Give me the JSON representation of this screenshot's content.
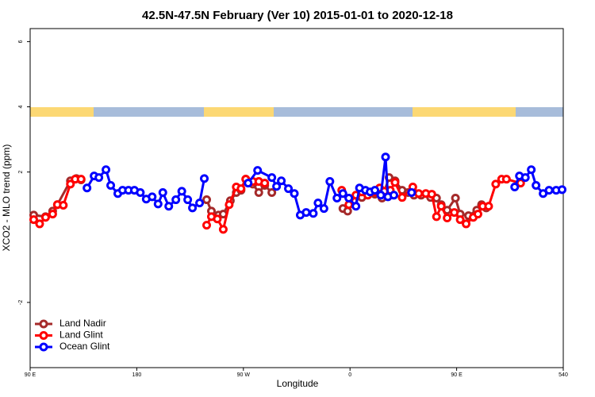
{
  "chart_data": {
    "type": "line",
    "title": "42.5N-47.5N February (Ver 10)   2015-01-01 to 2020-12-18",
    "x_label": "Longitude",
    "y_label": "XCO2 - MLO trend (ppm)",
    "xlim": [
      90,
      540
    ],
    "xticks": [
      {
        "value": 90,
        "label": "90 E"
      },
      180,
      {
        "value": 270,
        "label": "90 W"
      },
      {
        "value": 360,
        "label": "0"
      },
      {
        "value": 450,
        "label": "90 E"
      },
      540
    ],
    "ylim": [
      -4,
      6.4
    ],
    "yticks": [
      -2,
      2,
      4,
      6
    ],
    "legend": "bottom-left",
    "series": [
      {
        "name": "Land Nadir",
        "color": "#a52a2a",
        "x": [
          93,
          103,
          109,
          113,
          124,
          129,
          133,
          null,
          239,
          243,
          249,
          253,
          259,
          264,
          268,
          272,
          278,
          283,
          288,
          294,
          null,
          354,
          358,
          363,
          370,
          375,
          381,
          387,
          393,
          398,
          404,
          409,
          414,
          420,
          428,
          433,
          437,
          442,
          449,
          453,
          460,
          467,
          471,
          475
        ],
        "values": [
          0.68,
          0.63,
          0.8,
          1.0,
          1.73,
          1.8,
          1.76,
          null,
          1.15,
          0.8,
          0.68,
          0.71,
          1.12,
          1.37,
          1.44,
          1.78,
          1.63,
          1.37,
          1.59,
          1.37,
          null,
          0.88,
          0.8,
          1.12,
          1.22,
          1.32,
          1.32,
          1.2,
          1.83,
          1.73,
          1.44,
          1.37,
          1.29,
          1.29,
          1.22,
          1.2,
          1.0,
          0.83,
          1.2,
          0.71,
          0.66,
          0.83,
          1.0,
          0.9
        ]
      },
      {
        "name": "Land Glint",
        "color": "#ff0000",
        "x": [
          93,
          98,
          103,
          109,
          113,
          118,
          124,
          128,
          133,
          null,
          239,
          243,
          248,
          253,
          258,
          264,
          268,
          272,
          278,
          283,
          288,
          null,
          353,
          359,
          365,
          370,
          375,
          381,
          385,
          389,
          394,
          398,
          404,
          413,
          418,
          424,
          429,
          433,
          437,
          442,
          448,
          453,
          458,
          464,
          468,
          472,
          477,
          483,
          488,
          492,
          504
        ],
        "values": [
          0.54,
          0.41,
          0.61,
          0.71,
          1.0,
          0.98,
          1.63,
          1.78,
          1.78,
          null,
          0.37,
          0.63,
          0.56,
          0.24,
          1.0,
          1.54,
          1.49,
          1.78,
          1.71,
          1.71,
          1.66,
          null,
          1.44,
          1.0,
          1.29,
          1.39,
          1.29,
          1.39,
          1.51,
          1.41,
          1.44,
          1.68,
          1.22,
          1.54,
          1.34,
          1.34,
          1.32,
          0.63,
          0.95,
          0.59,
          0.76,
          0.54,
          0.41,
          0.61,
          0.71,
          0.95,
          0.95,
          1.63,
          1.78,
          1.78,
          1.66
        ]
      },
      {
        "name": "Ocean Glint",
        "color": "#0000ff",
        "x": [
          138,
          144,
          148,
          154,
          158,
          164,
          168,
          173,
          178,
          183,
          188,
          193,
          198,
          202,
          207,
          213,
          218,
          223,
          227,
          233,
          237,
          null,
          274,
          282,
          294,
          298,
          302,
          308,
          313,
          318,
          323,
          329,
          333,
          338,
          343,
          349,
          354,
          359,
          365,
          368,
          373,
          377,
          381,
          386,
          390,
          392,
          397,
          null,
          412,
          null,
          499,
          503,
          508,
          513,
          517,
          523,
          528,
          534,
          539
        ],
        "values": [
          1.51,
          1.88,
          1.83,
          2.07,
          1.59,
          1.34,
          1.44,
          1.44,
          1.44,
          1.37,
          1.17,
          1.24,
          1.02,
          1.37,
          0.95,
          1.15,
          1.41,
          1.15,
          0.9,
          1.05,
          1.8,
          null,
          1.66,
          2.05,
          1.83,
          1.56,
          1.73,
          1.49,
          1.34,
          0.68,
          0.76,
          0.73,
          1.05,
          0.88,
          1.71,
          1.2,
          1.34,
          1.2,
          0.95,
          1.51,
          1.44,
          1.39,
          1.44,
          1.29,
          2.46,
          1.24,
          1.29,
          null,
          1.37,
          null,
          1.54,
          1.88,
          1.83,
          2.07,
          1.59,
          1.34,
          1.44,
          1.44,
          1.46
        ]
      }
    ]
  }
}
